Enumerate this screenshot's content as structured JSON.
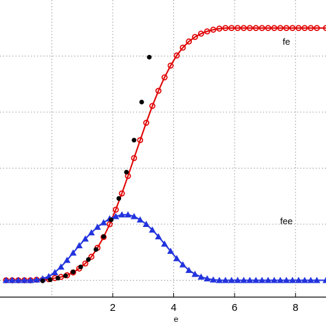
{
  "chart_data": {
    "type": "line",
    "xlabel": "e",
    "ylabel": "",
    "xlim": [
      -1.7,
      9.0
    ],
    "ylim": [
      -0.03,
      0.5
    ],
    "x_ticks": [
      2,
      4,
      6,
      8
    ],
    "grid": true,
    "annotations": [
      {
        "text": "fe",
        "x": 7.7,
        "y": 0.42
      },
      {
        "text": "fee",
        "x": 7.7,
        "y": 0.1
      }
    ],
    "series": [
      {
        "color": "#e00000",
        "marker": "circle",
        "line": true,
        "x": [
          -1.5,
          -1.3,
          -1.1,
          -0.9,
          -0.7,
          -0.5,
          -0.3,
          -0.1,
          0.1,
          0.3,
          0.5,
          0.7,
          0.9,
          1.1,
          1.3,
          1.5,
          1.7,
          1.9,
          2.1,
          2.3,
          2.5,
          2.7,
          2.9,
          3.1,
          3.3,
          3.5,
          3.7,
          3.9,
          4.1,
          4.3,
          4.5,
          4.7,
          4.9,
          5.1,
          5.3,
          5.5,
          5.7,
          5.9,
          6.1,
          6.3,
          6.5,
          6.7,
          6.9,
          7.1,
          7.3,
          7.5,
          7.7,
          7.9,
          8.1,
          8.3,
          8.5,
          8.7,
          9.0
        ],
        "y": [
          0.0,
          0.0,
          0.0,
          0.0,
          0.0,
          0.001,
          0.001,
          0.002,
          0.004,
          0.006,
          0.009,
          0.014,
          0.021,
          0.03,
          0.042,
          0.058,
          0.077,
          0.1,
          0.126,
          0.155,
          0.186,
          0.218,
          0.25,
          0.281,
          0.311,
          0.338,
          0.362,
          0.383,
          0.401,
          0.415,
          0.426,
          0.434,
          0.44,
          0.444,
          0.447,
          0.449,
          0.45,
          0.45,
          0.45,
          0.45,
          0.45,
          0.45,
          0.45,
          0.45,
          0.45,
          0.45,
          0.45,
          0.45,
          0.45,
          0.45,
          0.45,
          0.45,
          0.45
        ]
      },
      {
        "color": "#2233dd",
        "marker": "triangle",
        "line": true,
        "x": [
          -1.5,
          -1.3,
          -1.1,
          -0.9,
          -0.7,
          -0.5,
          -0.3,
          -0.1,
          0.1,
          0.3,
          0.5,
          0.7,
          0.9,
          1.1,
          1.3,
          1.5,
          1.7,
          1.9,
          2.1,
          2.3,
          2.5,
          2.7,
          2.9,
          3.1,
          3.3,
          3.5,
          3.7,
          3.9,
          4.1,
          4.3,
          4.5,
          4.7,
          4.9,
          5.1,
          5.3,
          5.5,
          5.7,
          5.9,
          6.1,
          6.3,
          6.5,
          6.7,
          6.9,
          7.1,
          7.3,
          7.5,
          7.7,
          7.9,
          8.1,
          8.3,
          8.5,
          8.7,
          9.0
        ],
        "y": [
          0.0,
          0.0,
          0.0,
          0.0,
          0.0,
          0.001,
          0.003,
          0.007,
          0.014,
          0.024,
          0.036,
          0.049,
          0.062,
          0.074,
          0.085,
          0.095,
          0.103,
          0.11,
          0.114,
          0.117,
          0.117,
          0.114,
          0.108,
          0.1,
          0.09,
          0.078,
          0.065,
          0.052,
          0.039,
          0.028,
          0.018,
          0.011,
          0.006,
          0.003,
          0.001,
          0.0,
          0.0,
          0.0,
          0.0,
          0.0,
          0.0,
          0.0,
          0.0,
          0.0,
          0.0,
          0.0,
          0.0,
          0.0,
          0.0,
          0.0,
          0.0,
          0.0,
          0.0
        ]
      },
      {
        "color": "#000000",
        "marker": "dot",
        "line": false,
        "x": [
          -0.3,
          -0.05,
          0.2,
          0.45,
          0.7,
          0.95,
          1.2,
          1.45,
          1.7,
          1.95,
          2.2,
          2.45,
          2.7,
          2.95,
          3.2
        ],
        "y": [
          -0.001,
          0.001,
          0.004,
          0.008,
          0.015,
          0.024,
          0.037,
          0.055,
          0.078,
          0.108,
          0.146,
          0.193,
          0.25,
          0.318,
          0.398
        ]
      }
    ]
  }
}
